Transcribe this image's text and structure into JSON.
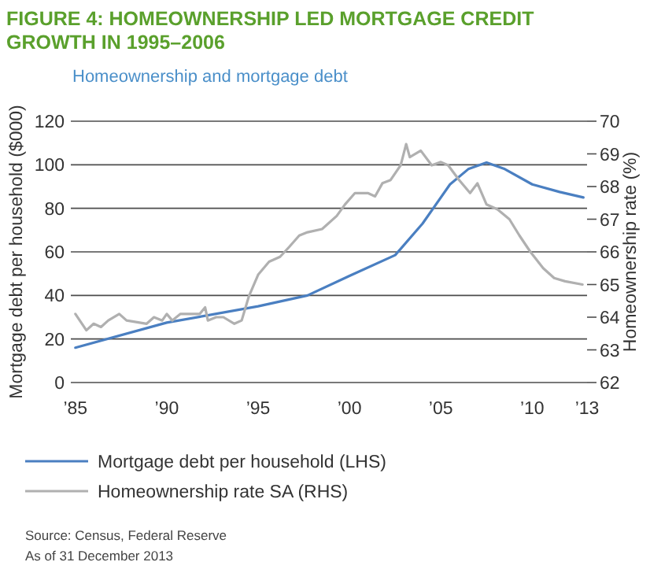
{
  "chart_data": {
    "type": "line",
    "title": "FIGURE 4: HOMEOWNERSHIP LED MORTGAGE CREDIT GROWTH IN 1995–2006",
    "subtitle": "Homeownership and mortgage debt",
    "ylabel": "Mortgage debt per household ($000)",
    "y2label": "Homeownership rate (%)",
    "xlim": [
      1984.75,
      2013
    ],
    "xticks": [
      {
        "value": 1985,
        "label": "’85"
      },
      {
        "value": 1990,
        "label": "’90"
      },
      {
        "value": 1995,
        "label": "’95"
      },
      {
        "value": 2000,
        "label": "’00"
      },
      {
        "value": 2005,
        "label": "’05"
      },
      {
        "value": 2010,
        "label": "’10"
      },
      {
        "value": 2013,
        "label": "’13"
      }
    ],
    "ylim": [
      0,
      120
    ],
    "yticks": [
      0,
      20,
      40,
      60,
      80,
      100,
      120
    ],
    "y2lim": [
      62,
      70
    ],
    "y2ticks": [
      62,
      63,
      64,
      65,
      66,
      67,
      68,
      69,
      70
    ],
    "grid": "y",
    "legend": "bottom",
    "series": [
      {
        "name": "Mortgage debt per household (LHS)",
        "color": "#4a7fc1",
        "x": [
          1985,
          1990,
          1995,
          1997.7,
          2000,
          2002.5,
          2004,
          2005.5,
          2006.5,
          2007.5,
          2008.5,
          2010,
          2011.5,
          2012.8
        ],
        "values": [
          16,
          27.5,
          35,
          40,
          49,
          58.5,
          73,
          91,
          98,
          101,
          98,
          91,
          87.5,
          85
        ]
      },
      {
        "name": "Homeownership rate SA (RHS)",
        "color": "#b0b0b0",
        "axis": "y2",
        "x": [
          1985,
          1985.6,
          1986,
          1986.4,
          1986.8,
          1987.4,
          1987.8,
          1988.9,
          1989.3,
          1989.75,
          1990,
          1990.3,
          1990.75,
          1991.8,
          1992.1,
          1992.25,
          1992.7,
          1993.1,
          1993.7,
          1994.1,
          1994.5,
          1995,
          1995.6,
          1996.2,
          1996.7,
          1997.25,
          1997.7,
          1998.5,
          1999.3,
          1999.75,
          2000.3,
          2001,
          2001.4,
          2001.8,
          2002.25,
          2002.8,
          2003.1,
          2003.3,
          2003.9,
          2004.5,
          2005,
          2005.4,
          2006,
          2006.6,
          2007,
          2007.5,
          2008.1,
          2008.75,
          2009.3,
          2009.9,
          2010.6,
          2011.2,
          2011.8,
          2012.75
        ],
        "values": [
          64.1,
          63.6,
          63.8,
          63.7,
          63.9,
          64.1,
          63.9,
          63.8,
          64.0,
          63.9,
          64.1,
          63.9,
          64.1,
          64.1,
          64.3,
          63.9,
          64.0,
          64.0,
          63.8,
          63.9,
          64.65,
          65.3,
          65.7,
          65.85,
          66.15,
          66.5,
          66.6,
          66.7,
          67.1,
          67.45,
          67.8,
          67.8,
          67.7,
          68.1,
          68.2,
          68.65,
          69.3,
          68.9,
          69.1,
          68.65,
          68.75,
          68.65,
          68.2,
          67.8,
          68.1,
          67.45,
          67.3,
          67.0,
          66.5,
          66.0,
          65.5,
          65.2,
          65.1,
          65.0
        ]
      }
    ],
    "annotations": [
      "Source: Census, Federal Reserve",
      "As of 31 December 2013"
    ]
  }
}
